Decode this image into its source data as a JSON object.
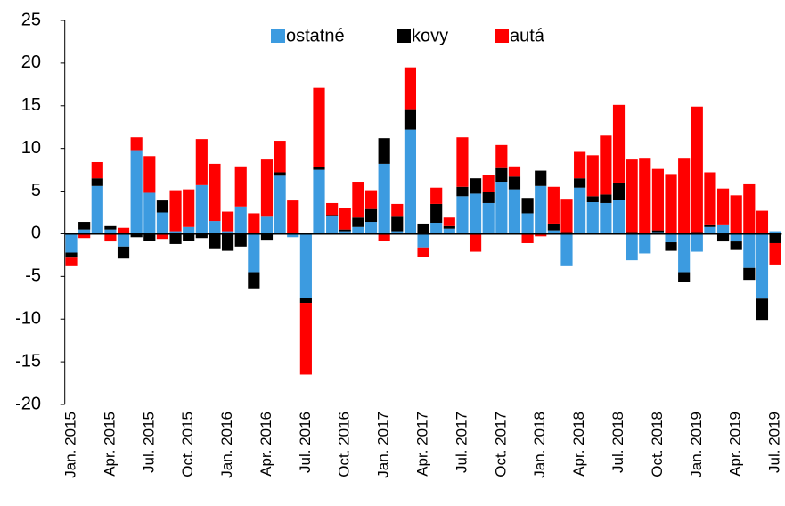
{
  "chart_data": {
    "type": "bar",
    "stacked": true,
    "legend": "top",
    "categories": [
      "Jan. 2015",
      null,
      null,
      "Apr. 2015",
      null,
      null,
      "Jul. 2015",
      null,
      null,
      "Oct. 2015",
      null,
      null,
      "Jan. 2016",
      null,
      null,
      "Apr. 2016",
      null,
      null,
      "Jul. 2016",
      null,
      null,
      "Oct. 2016",
      null,
      null,
      "Jan. 2017",
      null,
      null,
      "Apr. 2017",
      null,
      null,
      "Jul. 2017",
      null,
      null,
      "Oct. 2017",
      null,
      null,
      "Jan. 2018",
      null,
      null,
      "Apr. 2018",
      null,
      null,
      "Jul. 2018",
      null,
      null,
      "Oct. 2018",
      null,
      null,
      "Jan. 2019",
      null,
      null,
      "Apr. 2019",
      null,
      null,
      "Jul. 2019"
    ],
    "series": [
      {
        "name": "ostatné",
        "color": "#3c9be0",
        "values": [
          -2.2,
          0.5,
          5.6,
          0.5,
          -1.5,
          9.8,
          4.8,
          2.5,
          0.3,
          0.8,
          5.7,
          1.5,
          0.3,
          3.2,
          -4.5,
          2.0,
          6.8,
          -0.4,
          -7.5,
          7.5,
          2.1,
          0.3,
          0.8,
          1.4,
          8.2,
          0.3,
          12.2,
          -1.6,
          1.3,
          0.6,
          4.4,
          4.7,
          3.6,
          6.1,
          5.2,
          2.4,
          5.6,
          0.4,
          -3.8,
          5.4,
          3.7,
          3.6,
          4.0,
          -3.1,
          -2.3,
          0.2,
          -1.0,
          -4.5,
          -2.1,
          0.8,
          1.0,
          -0.9,
          -4.0,
          -7.6,
          0.3
        ]
      },
      {
        "name": "kovy",
        "color": "#000000",
        "values": [
          -0.6,
          0.9,
          0.9,
          0.4,
          -1.4,
          -0.4,
          -0.8,
          1.4,
          -1.2,
          -0.8,
          -0.5,
          -1.7,
          -2.0,
          -1.5,
          -1.9,
          -0.7,
          0.4,
          0.0,
          -0.6,
          0.3,
          0.1,
          0.2,
          1.1,
          1.5,
          3.0,
          1.7,
          2.4,
          1.2,
          2.2,
          0.3,
          1.1,
          1.8,
          1.3,
          1.6,
          1.5,
          1.8,
          1.8,
          0.8,
          0.2,
          1.1,
          0.7,
          1.0,
          2.0,
          0.2,
          0.1,
          0.2,
          -1.0,
          -1.1,
          0.2,
          0.2,
          -0.9,
          -1.0,
          -1.4,
          -2.5,
          -1.1
        ]
      },
      {
        "name": "autá",
        "color": "#ff0000",
        "values": [
          -1.0,
          -0.5,
          1.9,
          -0.9,
          0.7,
          1.5,
          4.3,
          -0.6,
          4.8,
          4.4,
          5.4,
          6.7,
          2.3,
          4.7,
          2.4,
          6.7,
          3.7,
          3.9,
          -8.4,
          9.3,
          1.4,
          2.5,
          4.2,
          2.2,
          -0.8,
          1.5,
          4.9,
          -1.1,
          1.9,
          1.0,
          5.8,
          -2.1,
          2.0,
          2.7,
          1.2,
          -1.1,
          -0.3,
          4.3,
          3.9,
          3.1,
          4.8,
          6.9,
          9.1,
          8.5,
          8.8,
          7.2,
          7.0,
          8.9,
          14.7,
          6.2,
          4.3,
          4.5,
          5.9,
          2.7,
          -2.5
        ]
      }
    ],
    "ylim": [
      -20,
      25
    ],
    "yticks": [
      -20,
      -15,
      -10,
      -5,
      0,
      5,
      10,
      15,
      20,
      25
    ]
  }
}
